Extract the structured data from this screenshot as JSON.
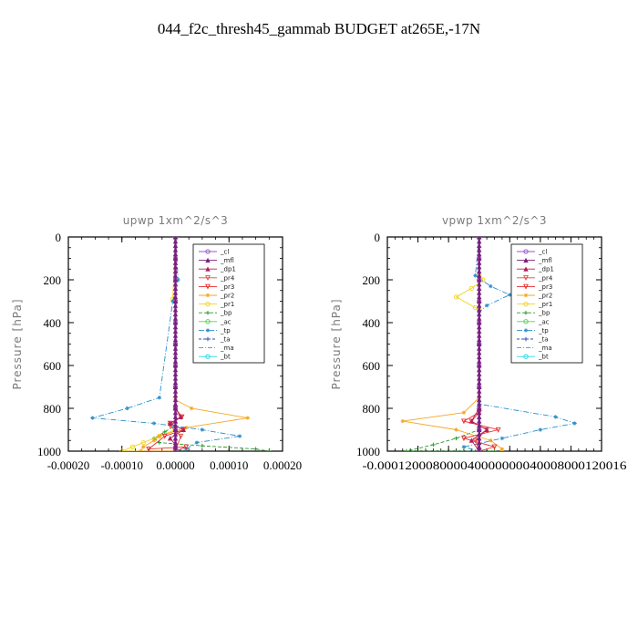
{
  "figure_title": "044_f2c_thresh45_gammab  BUDGET at265E,-17N",
  "colors": {
    "_cl": "#9a55c9",
    "_mfl": "#7a1f80",
    "_dp1": "#b0205a",
    "_pr4": "#e0483a",
    "_pr3": "#e82c2c",
    "_pr2": "#f5a623",
    "_pr1": "#f2d21e",
    "_bp": "#2a9a2a",
    "_ac": "#55d055",
    "_tp": "#2b8fc9",
    "_ta": "#2f4fb8",
    "_ma": "#2aa8d0",
    "_bt": "#22d8e8"
  },
  "chart_data": [
    {
      "type": "line",
      "title": "upwp   1xm^2/s^3",
      "ylabel": "Pressure [hPa]",
      "xlim": [
        -0.0002,
        0.0002
      ],
      "ylim": [
        1000,
        0
      ],
      "xticks": [
        "-0.00020",
        "-0.00010",
        "0.00000",
        "0.00010",
        "0.00020"
      ],
      "xtick_values": [
        -0.0002,
        -0.0001,
        0.0,
        0.0001,
        0.0002
      ],
      "yticks": [
        "0",
        "200",
        "400",
        "600",
        "800",
        "1000"
      ],
      "ytick_values": [
        0,
        200,
        400,
        600,
        800,
        1000
      ],
      "legend": [
        "_cl",
        "_mfl",
        "_dp1",
        "_pr4",
        "_pr3",
        "_pr2",
        "_pr1",
        "_bp",
        "_ac",
        "_tp",
        "_ta",
        "_ma",
        "_bt"
      ],
      "legend_position": "top-right",
      "series": [
        {
          "name": "_cl",
          "x": [
            0,
            0,
            0,
            0,
            0,
            0,
            0,
            0,
            0,
            0,
            0
          ],
          "y": [
            0,
            100,
            200,
            300,
            400,
            500,
            600,
            700,
            800,
            900,
            1000
          ]
        },
        {
          "name": "_mfl",
          "x": [
            0,
            0,
            0,
            0,
            0,
            0,
            0,
            0,
            0,
            0,
            0
          ],
          "y": [
            0,
            100,
            200,
            300,
            400,
            500,
            600,
            700,
            800,
            900,
            1000
          ]
        },
        {
          "name": "_dp1",
          "x": [
            0,
            0,
            0,
            1e-05,
            -1e-05,
            1.5e-05,
            -1e-05,
            0,
            0
          ],
          "y": [
            0,
            700,
            800,
            840,
            870,
            900,
            940,
            970,
            1000
          ]
        },
        {
          "name": "_pr4",
          "x": [
            0,
            0,
            1e-05,
            -1e-05,
            1e-05,
            0
          ],
          "y": [
            0,
            800,
            840,
            880,
            930,
            1000
          ]
        },
        {
          "name": "_pr3",
          "x": [
            0,
            0,
            1.2e-05,
            -1e-05,
            1.5e-05,
            -2e-05,
            -5e-05,
            2e-05,
            0
          ],
          "y": [
            0,
            800,
            840,
            870,
            900,
            930,
            990,
            980,
            1000
          ]
        },
        {
          "name": "_pr2",
          "x": [
            0,
            0,
            3e-05,
            0.000135,
            2e-05,
            -3e-05,
            -4e-05,
            -6e-05,
            -6.5e-05,
            0
          ],
          "y": [
            0,
            760,
            800,
            845,
            890,
            930,
            950,
            980,
            1000,
            1000
          ]
        },
        {
          "name": "_pr1",
          "x": [
            0,
            -5e-06,
            0,
            0,
            -3e-05,
            -6e-05,
            -8e-05,
            -0.0001,
            0
          ],
          "y": [
            0,
            290,
            300,
            900,
            930,
            960,
            980,
            1000,
            1000
          ]
        },
        {
          "name": "_bp",
          "x": [
            0,
            0,
            -2e-05,
            -4e-05,
            -3e-05,
            5e-05,
            0.00015,
            0.000175
          ],
          "y": [
            0,
            880,
            910,
            940,
            960,
            975,
            990,
            1000
          ]
        },
        {
          "name": "_ac",
          "x": [
            0,
            0,
            0,
            0
          ],
          "y": [
            0,
            500,
            900,
            1000
          ]
        },
        {
          "name": "_tp",
          "x": [
            0,
            5e-06,
            -5e-06,
            -3e-05,
            -9e-05,
            -0.000155,
            -4e-05,
            5e-05,
            0.00012,
            4e-05,
            2e-05,
            0
          ],
          "y": [
            0,
            200,
            300,
            750,
            800,
            845,
            870,
            900,
            930,
            960,
            990,
            1000
          ]
        },
        {
          "name": "_ta",
          "x": [
            0,
            0,
            0,
            0
          ],
          "y": [
            0,
            500,
            900,
            1000
          ]
        },
        {
          "name": "_ma",
          "x": [
            0,
            0,
            0,
            0
          ],
          "y": [
            0,
            500,
            900,
            1000
          ]
        },
        {
          "name": "_bt",
          "x": [
            0,
            0,
            0,
            0
          ],
          "y": [
            0,
            500,
            900,
            1000
          ]
        }
      ]
    },
    {
      "type": "line",
      "title": "vpwp   1xm^2/s^3",
      "ylabel": "Pressure [hPa]",
      "xlim": [
        -0.00012,
        0.00016
      ],
      "ylim": [
        1000,
        0
      ],
      "xticks": [
        "-0.00012",
        "-0.00008",
        "-0.00004",
        "0.00000",
        "0.00004",
        "0.00008",
        "0.00012",
        "0.00016"
      ],
      "xticklabel_text": "-0.000120008000040000000040008000120016",
      "xtick_values": [
        -0.00012,
        -8e-05,
        -4e-05,
        0.0,
        4e-05,
        8e-05,
        0.00012,
        0.00016
      ],
      "yticks": [
        "0",
        "200",
        "400",
        "600",
        "800",
        "1000"
      ],
      "ytick_values": [
        0,
        200,
        400,
        600,
        800,
        1000
      ],
      "legend": [
        "_cl",
        "_mfl",
        "_dp1",
        "_pr4",
        "_pr3",
        "_pr2",
        "_pr1",
        "_bp",
        "_ac",
        "_tp",
        "_ta",
        "_ma",
        "_bt"
      ],
      "legend_position": "top-right",
      "series": [
        {
          "name": "_cl",
          "x": [
            0,
            0,
            0,
            0,
            0,
            0,
            0,
            0,
            0,
            0,
            0
          ],
          "y": [
            0,
            100,
            200,
            300,
            400,
            500,
            600,
            700,
            800,
            900,
            1000
          ]
        },
        {
          "name": "_mfl",
          "x": [
            0,
            0,
            0,
            0,
            0,
            0,
            0,
            0,
            0,
            0,
            0
          ],
          "y": [
            0,
            100,
            200,
            300,
            400,
            500,
            600,
            700,
            800,
            900,
            1000
          ]
        },
        {
          "name": "_dp1",
          "x": [
            0,
            0,
            -1e-05,
            1e-05,
            -1e-05,
            0
          ],
          "y": [
            0,
            800,
            860,
            900,
            950,
            1000
          ]
        },
        {
          "name": "_pr4",
          "x": [
            0,
            0,
            -1e-05,
            1e-05,
            -5e-06,
            0
          ],
          "y": [
            0,
            820,
            860,
            900,
            950,
            1000
          ]
        },
        {
          "name": "_pr3",
          "x": [
            0,
            0,
            -2e-05,
            2.5e-05,
            -2e-05,
            2e-05,
            0
          ],
          "y": [
            0,
            820,
            860,
            900,
            940,
            980,
            1000
          ]
        },
        {
          "name": "_pr2",
          "x": [
            0,
            0,
            -2e-05,
            -0.0001,
            -3e-05,
            1.5e-05,
            3e-05,
            3e-05
          ],
          "y": [
            0,
            750,
            820,
            860,
            900,
            950,
            990,
            1000
          ]
        },
        {
          "name": "_pr1",
          "x": [
            0,
            0,
            5e-06,
            -1e-05,
            -3e-05,
            -5e-06,
            0,
            0
          ],
          "y": [
            0,
            180,
            200,
            240,
            280,
            330,
            340,
            1000
          ]
        },
        {
          "name": "_bp",
          "x": [
            0,
            0,
            -3e-05,
            -6e-05,
            -9.5e-05,
            2e-05
          ],
          "y": [
            0,
            900,
            940,
            970,
            1000,
            1000
          ]
        },
        {
          "name": "_ac",
          "x": [
            0,
            0,
            0,
            0
          ],
          "y": [
            0,
            500,
            900,
            1000
          ]
        },
        {
          "name": "_tp",
          "x": [
            0,
            -5e-06,
            1.5e-05,
            4e-05,
            1e-05,
            0,
            0,
            0.0001,
            0.000125,
            8e-05,
            3e-05,
            -2e-05,
            0
          ],
          "y": [
            0,
            180,
            230,
            270,
            320,
            350,
            780,
            840,
            870,
            900,
            940,
            980,
            1000
          ]
        },
        {
          "name": "_ta",
          "x": [
            0,
            0,
            0,
            0
          ],
          "y": [
            0,
            500,
            900,
            1000
          ]
        },
        {
          "name": "_ma",
          "x": [
            0,
            0,
            0,
            0
          ],
          "y": [
            0,
            500,
            900,
            1000
          ]
        },
        {
          "name": "_bt",
          "x": [
            0,
            0,
            0,
            0
          ],
          "y": [
            0,
            500,
            900,
            1000
          ]
        }
      ]
    }
  ]
}
